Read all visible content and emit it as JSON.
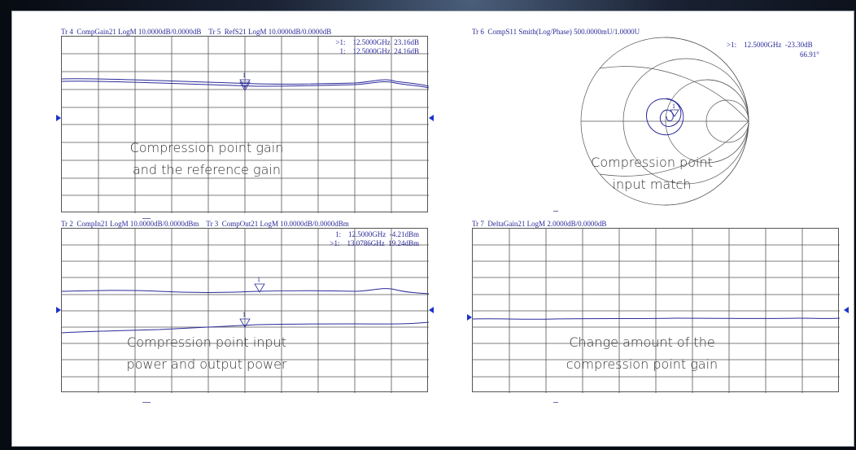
{
  "colors": {
    "trace": "#2a2a9a",
    "grid": "#555555",
    "reference_marker": "#1a33cc"
  },
  "panels": {
    "top_left": {
      "header": "Tr 4  CompGain21 LogM 10.0000dB/0.0000dB    Tr 5  RefS21 LogM 10.0000dB/0.0000dB",
      "readout": ">1:    12.5000GHz  23.16dB\n 1:    12.5000GHz  24.16dB",
      "marker_label": "1",
      "caption_line1": "Compression point gain",
      "caption_line2": "and the reference gain"
    },
    "top_right": {
      "header": "Tr 6  CompS11 Smith(Log/Phase) 500.0000mU/1.0000U",
      "readout_line1": ">1:    12.5000GHz  -23.30dB",
      "readout_line2": "66.91°",
      "marker_label": "1",
      "caption_line1": "Compression point",
      "caption_line2": "input match"
    },
    "bottom_left": {
      "header": "Tr 2  CompIn21 LogM 10.0000dB/0.0000dBm    Tr 3  CompOut21 LogM 10.0000dB/0.0000dBm",
      "readout": " 1:    12.5000GHz  -4.21dBm\n>1:    13.0786GHz  19.24dBm",
      "marker_label_1": "1",
      "marker_label_2": "1",
      "caption_line1": "Compression point input",
      "caption_line2": "power and output power"
    },
    "bottom_right": {
      "header": "Tr 7  DeltaGain21 LogM 2.0000dB/0.0000dB",
      "caption_line1": "Change amount of the",
      "caption_line2": "compression point gain"
    }
  }
}
